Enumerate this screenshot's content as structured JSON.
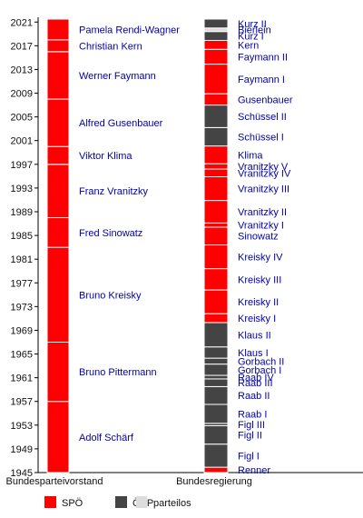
{
  "chart_data": {
    "type": "bar",
    "ylim": [
      1945,
      2021.5
    ],
    "yticks": [
      1945,
      1949,
      1953,
      1957,
      1961,
      1965,
      1969,
      1973,
      1977,
      1981,
      1985,
      1989,
      1993,
      1997,
      2001,
      2005,
      2009,
      2013,
      2017,
      2021
    ],
    "columns": [
      {
        "label": "Bundesparteivorstand",
        "segments": [
          {
            "start": 1945,
            "end": 1957,
            "party": "SPÖ",
            "label": "Adolf Schärf"
          },
          {
            "start": 1957,
            "end": 1967,
            "party": "SPÖ",
            "label": "Bruno Pittermann"
          },
          {
            "start": 1967,
            "end": 1983,
            "party": "SPÖ",
            "label": "Bruno Kreisky"
          },
          {
            "start": 1983,
            "end": 1988,
            "party": "SPÖ",
            "label": "Fred Sinowatz"
          },
          {
            "start": 1988,
            "end": 1997,
            "party": "SPÖ",
            "label": "Franz Vranitzky"
          },
          {
            "start": 1997,
            "end": 2000,
            "party": "SPÖ",
            "label": "Viktor Klima"
          },
          {
            "start": 2000,
            "end": 2008,
            "party": "SPÖ",
            "label": "Alfred Gusenbauer"
          },
          {
            "start": 2008,
            "end": 2016,
            "party": "SPÖ",
            "label": "Werner Faymann"
          },
          {
            "start": 2016,
            "end": 2018,
            "party": "SPÖ",
            "label": "Christian Kern"
          },
          {
            "start": 2018,
            "end": 2021.5,
            "party": "SPÖ",
            "label": "Pamela Rendi-Wagner"
          }
        ]
      },
      {
        "label": "Bundesregierung",
        "segments": [
          {
            "start": 1945,
            "end": 1945.9,
            "party": "SPÖ",
            "label": "Renner"
          },
          {
            "start": 1945.9,
            "end": 1949.8,
            "party": "ÖVP",
            "label": "Figl I"
          },
          {
            "start": 1949.8,
            "end": 1952.9,
            "party": "ÖVP",
            "label": "Figl II"
          },
          {
            "start": 1952.9,
            "end": 1953.3,
            "party": "ÖVP",
            "label": "Figl III"
          },
          {
            "start": 1953.3,
            "end": 1956.5,
            "party": "ÖVP",
            "label": "Raab I"
          },
          {
            "start": 1956.5,
            "end": 1959.5,
            "party": "ÖVP",
            "label": "Raab II"
          },
          {
            "start": 1959.5,
            "end": 1960.8,
            "party": "ÖVP",
            "label": "Raab III"
          },
          {
            "start": 1960.8,
            "end": 1961.4,
            "party": "ÖVP",
            "label": "Raab IV"
          },
          {
            "start": 1961.4,
            "end": 1963.3,
            "party": "ÖVP",
            "label": "Gorbach I"
          },
          {
            "start": 1963.3,
            "end": 1964.3,
            "party": "ÖVP",
            "label": "Gorbach II"
          },
          {
            "start": 1964.3,
            "end": 1966.2,
            "party": "ÖVP",
            "label": "Klaus I"
          },
          {
            "start": 1966.2,
            "end": 1970.3,
            "party": "ÖVP",
            "label": "Klaus II"
          },
          {
            "start": 1970.3,
            "end": 1971.8,
            "party": "SPÖ",
            "label": "Kreisky I"
          },
          {
            "start": 1971.8,
            "end": 1975.8,
            "party": "SPÖ",
            "label": "Kreisky II"
          },
          {
            "start": 1975.8,
            "end": 1979.4,
            "party": "SPÖ",
            "label": "Kreisky III"
          },
          {
            "start": 1979.4,
            "end": 1983.4,
            "party": "SPÖ",
            "label": "Kreisky IV"
          },
          {
            "start": 1983.4,
            "end": 1986.4,
            "party": "SPÖ",
            "label": "Sinowatz"
          },
          {
            "start": 1986.4,
            "end": 1987.1,
            "party": "SPÖ",
            "label": "Vranitzky I"
          },
          {
            "start": 1987.1,
            "end": 1990.9,
            "party": "SPÖ",
            "label": "Vranitzky II"
          },
          {
            "start": 1990.9,
            "end": 1994.9,
            "party": "SPÖ",
            "label": "Vranitzky III"
          },
          {
            "start": 1994.9,
            "end": 1996.2,
            "party": "SPÖ",
            "label": "Vranitzky IV"
          },
          {
            "start": 1996.2,
            "end": 1997.1,
            "party": "SPÖ",
            "label": "Vranitzky V"
          },
          {
            "start": 1997.1,
            "end": 2000.1,
            "party": "SPÖ",
            "label": "Klima"
          },
          {
            "start": 2000.1,
            "end": 2003.2,
            "party": "ÖVP",
            "label": "Schüssel I"
          },
          {
            "start": 2003.2,
            "end": 2007.0,
            "party": "ÖVP",
            "label": "Schüssel II"
          },
          {
            "start": 2007.0,
            "end": 2008.9,
            "party": "SPÖ",
            "label": "Gusenbauer"
          },
          {
            "start": 2008.9,
            "end": 2013.9,
            "party": "SPÖ",
            "label": "Faymann I"
          },
          {
            "start": 2013.9,
            "end": 2016.4,
            "party": "SPÖ",
            "label": "Faymann II"
          },
          {
            "start": 2016.4,
            "end": 2017.9,
            "party": "SPÖ",
            "label": "Kern"
          },
          {
            "start": 2017.9,
            "end": 2019.4,
            "party": "ÖVP",
            "label": "Kurz I"
          },
          {
            "start": 2019.4,
            "end": 2020.0,
            "party": "parteilos",
            "label": "Bierlein"
          },
          {
            "start": 2020.0,
            "end": 2021.5,
            "party": "ÖVP",
            "label": "Kurz II"
          }
        ]
      }
    ],
    "legend": [
      {
        "name": "SPÖ",
        "color": "#ff0000"
      },
      {
        "name": "ÖVP",
        "color": "#444444"
      },
      {
        "name": "parteilos",
        "color": "#dddddd"
      }
    ],
    "legend_position": "bottom",
    "grid": false
  }
}
